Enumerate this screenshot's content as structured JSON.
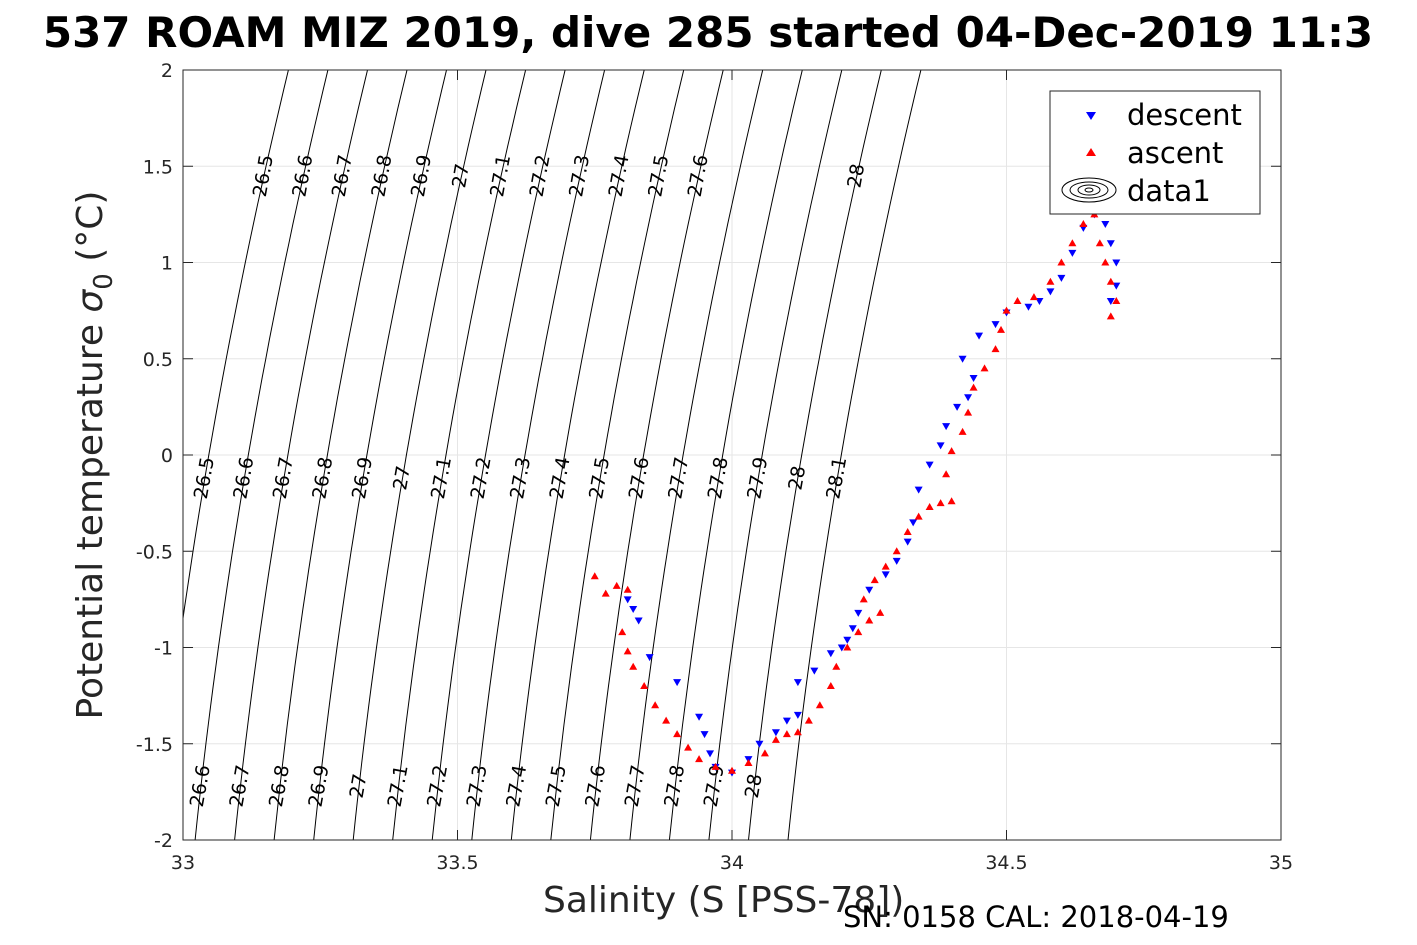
{
  "chart_data": {
    "type": "scatter",
    "title": "537 ROAM MIZ 2019, dive 285 started 04-Dec-2019 11:3",
    "xlabel": "Salinity (S [PSS-78])",
    "ylabel": "Potential temperature σ 0 (°C)",
    "ylabel_text": "Potential temperature ",
    "ylabel_sigma": "σ",
    "ylabel_sub": "0",
    "ylabel_unit": " (°C)",
    "xlim": [
      33,
      35
    ],
    "ylim": [
      -2,
      2
    ],
    "x_ticks": [
      "33",
      "33.5",
      "34",
      "34.5",
      "35"
    ],
    "y_ticks": [
      "2",
      "1.5",
      "1",
      "0.5",
      "0",
      "-0.5",
      "-1",
      "-1.5",
      "-2"
    ],
    "grid": true,
    "legend_position": "top-right",
    "legend": [
      {
        "label": "descent",
        "marker": "triangle-down",
        "color": "#0000ff"
      },
      {
        "label": "ascent",
        "marker": "triangle-up",
        "color": "#ff0000"
      },
      {
        "label": "data1",
        "marker": "contour"
      }
    ],
    "density_contours": [
      26.5,
      26.6,
      26.7,
      26.8,
      26.9,
      27,
      27.1,
      27.2,
      27.3,
      27.4,
      27.5,
      27.6,
      27.7,
      27.8,
      27.9,
      28,
      28.1
    ],
    "contour_labels": {
      "top": [
        "26.5",
        "26.6",
        "26.7",
        "26.8",
        "26.9",
        "27",
        "27.1",
        "27.2",
        "27.3",
        "27.4",
        "27.5",
        "27.6",
        "28"
      ],
      "middle": [
        "26.5",
        "26.6",
        "26.7",
        "26.8",
        "26.9",
        "27",
        "27.1",
        "27.2",
        "27.3",
        "27.4",
        "27.5",
        "27.6",
        "27.7",
        "27.8",
        "27.9",
        "28",
        "28.1"
      ],
      "bottom": [
        "26.6",
        "26.7",
        "26.8",
        "26.9",
        "27",
        "27.1",
        "27.2",
        "27.3",
        "27.4",
        "27.5",
        "27.6",
        "27.7",
        "27.8",
        "27.9",
        "28"
      ]
    },
    "series": [
      {
        "name": "descent",
        "color": "#0000ff",
        "marker": "triangle-down",
        "points": [
          [
            33.81,
            -0.75
          ],
          [
            33.82,
            -0.8
          ],
          [
            33.83,
            -0.86
          ],
          [
            33.85,
            -1.05
          ],
          [
            33.9,
            -1.18
          ],
          [
            33.94,
            -1.36
          ],
          [
            33.95,
            -1.45
          ],
          [
            33.96,
            -1.55
          ],
          [
            33.97,
            -1.62
          ],
          [
            34.0,
            -1.65
          ],
          [
            34.03,
            -1.58
          ],
          [
            34.05,
            -1.5
          ],
          [
            34.08,
            -1.44
          ],
          [
            34.1,
            -1.38
          ],
          [
            34.12,
            -1.35
          ],
          [
            34.12,
            -1.18
          ],
          [
            34.15,
            -1.12
          ],
          [
            34.18,
            -1.03
          ],
          [
            34.2,
            -1.0
          ],
          [
            34.21,
            -0.96
          ],
          [
            34.23,
            -0.82
          ],
          [
            34.22,
            -0.9
          ],
          [
            34.25,
            -0.7
          ],
          [
            34.28,
            -0.62
          ],
          [
            34.3,
            -0.55
          ],
          [
            34.32,
            -0.45
          ],
          [
            34.33,
            -0.35
          ],
          [
            34.34,
            -0.18
          ],
          [
            34.36,
            -0.05
          ],
          [
            34.38,
            0.05
          ],
          [
            34.39,
            0.15
          ],
          [
            34.41,
            0.25
          ],
          [
            34.43,
            0.3
          ],
          [
            34.44,
            0.4
          ],
          [
            34.42,
            0.5
          ],
          [
            34.45,
            0.62
          ],
          [
            34.48,
            0.68
          ],
          [
            34.5,
            0.74
          ],
          [
            34.54,
            0.77
          ],
          [
            34.56,
            0.8
          ],
          [
            34.58,
            0.85
          ],
          [
            34.6,
            0.92
          ],
          [
            34.62,
            1.05
          ],
          [
            34.64,
            1.18
          ],
          [
            34.66,
            1.25
          ],
          [
            34.68,
            1.2
          ],
          [
            34.69,
            1.1
          ],
          [
            34.7,
            1.0
          ],
          [
            34.7,
            0.88
          ],
          [
            34.69,
            0.8
          ]
        ]
      },
      {
        "name": "ascent",
        "color": "#ff0000",
        "marker": "triangle-up",
        "points": [
          [
            33.75,
            -0.63
          ],
          [
            33.77,
            -0.72
          ],
          [
            33.79,
            -0.68
          ],
          [
            33.81,
            -0.7
          ],
          [
            33.8,
            -0.92
          ],
          [
            33.81,
            -1.02
          ],
          [
            33.82,
            -1.1
          ],
          [
            33.84,
            -1.2
          ],
          [
            33.86,
            -1.3
          ],
          [
            33.88,
            -1.38
          ],
          [
            33.9,
            -1.45
          ],
          [
            33.92,
            -1.52
          ],
          [
            33.94,
            -1.58
          ],
          [
            33.97,
            -1.62
          ],
          [
            34.0,
            -1.64
          ],
          [
            34.03,
            -1.6
          ],
          [
            34.06,
            -1.55
          ],
          [
            34.08,
            -1.48
          ],
          [
            34.1,
            -1.45
          ],
          [
            34.12,
            -1.44
          ],
          [
            34.14,
            -1.38
          ],
          [
            34.16,
            -1.3
          ],
          [
            34.18,
            -1.2
          ],
          [
            34.19,
            -1.1
          ],
          [
            34.21,
            -1.0
          ],
          [
            34.23,
            -0.92
          ],
          [
            34.25,
            -0.86
          ],
          [
            34.27,
            -0.82
          ],
          [
            34.24,
            -0.75
          ],
          [
            34.26,
            -0.65
          ],
          [
            34.28,
            -0.58
          ],
          [
            34.3,
            -0.5
          ],
          [
            34.32,
            -0.4
          ],
          [
            34.34,
            -0.32
          ],
          [
            34.36,
            -0.27
          ],
          [
            34.38,
            -0.25
          ],
          [
            34.4,
            -0.24
          ],
          [
            34.39,
            -0.1
          ],
          [
            34.4,
            0.02
          ],
          [
            34.42,
            0.12
          ],
          [
            34.43,
            0.22
          ],
          [
            34.44,
            0.35
          ],
          [
            34.46,
            0.45
          ],
          [
            34.48,
            0.55
          ],
          [
            34.49,
            0.65
          ],
          [
            34.5,
            0.75
          ],
          [
            34.52,
            0.8
          ],
          [
            34.55,
            0.82
          ],
          [
            34.58,
            0.9
          ],
          [
            34.6,
            1.0
          ],
          [
            34.62,
            1.1
          ],
          [
            34.64,
            1.2
          ],
          [
            34.66,
            1.25
          ],
          [
            34.67,
            1.1
          ],
          [
            34.68,
            1.0
          ],
          [
            34.69,
            0.9
          ],
          [
            34.7,
            0.8
          ],
          [
            34.69,
            0.72
          ]
        ]
      }
    ]
  },
  "footer": {
    "sn_cal": "SN: 0158  CAL: 2018-04-19"
  }
}
